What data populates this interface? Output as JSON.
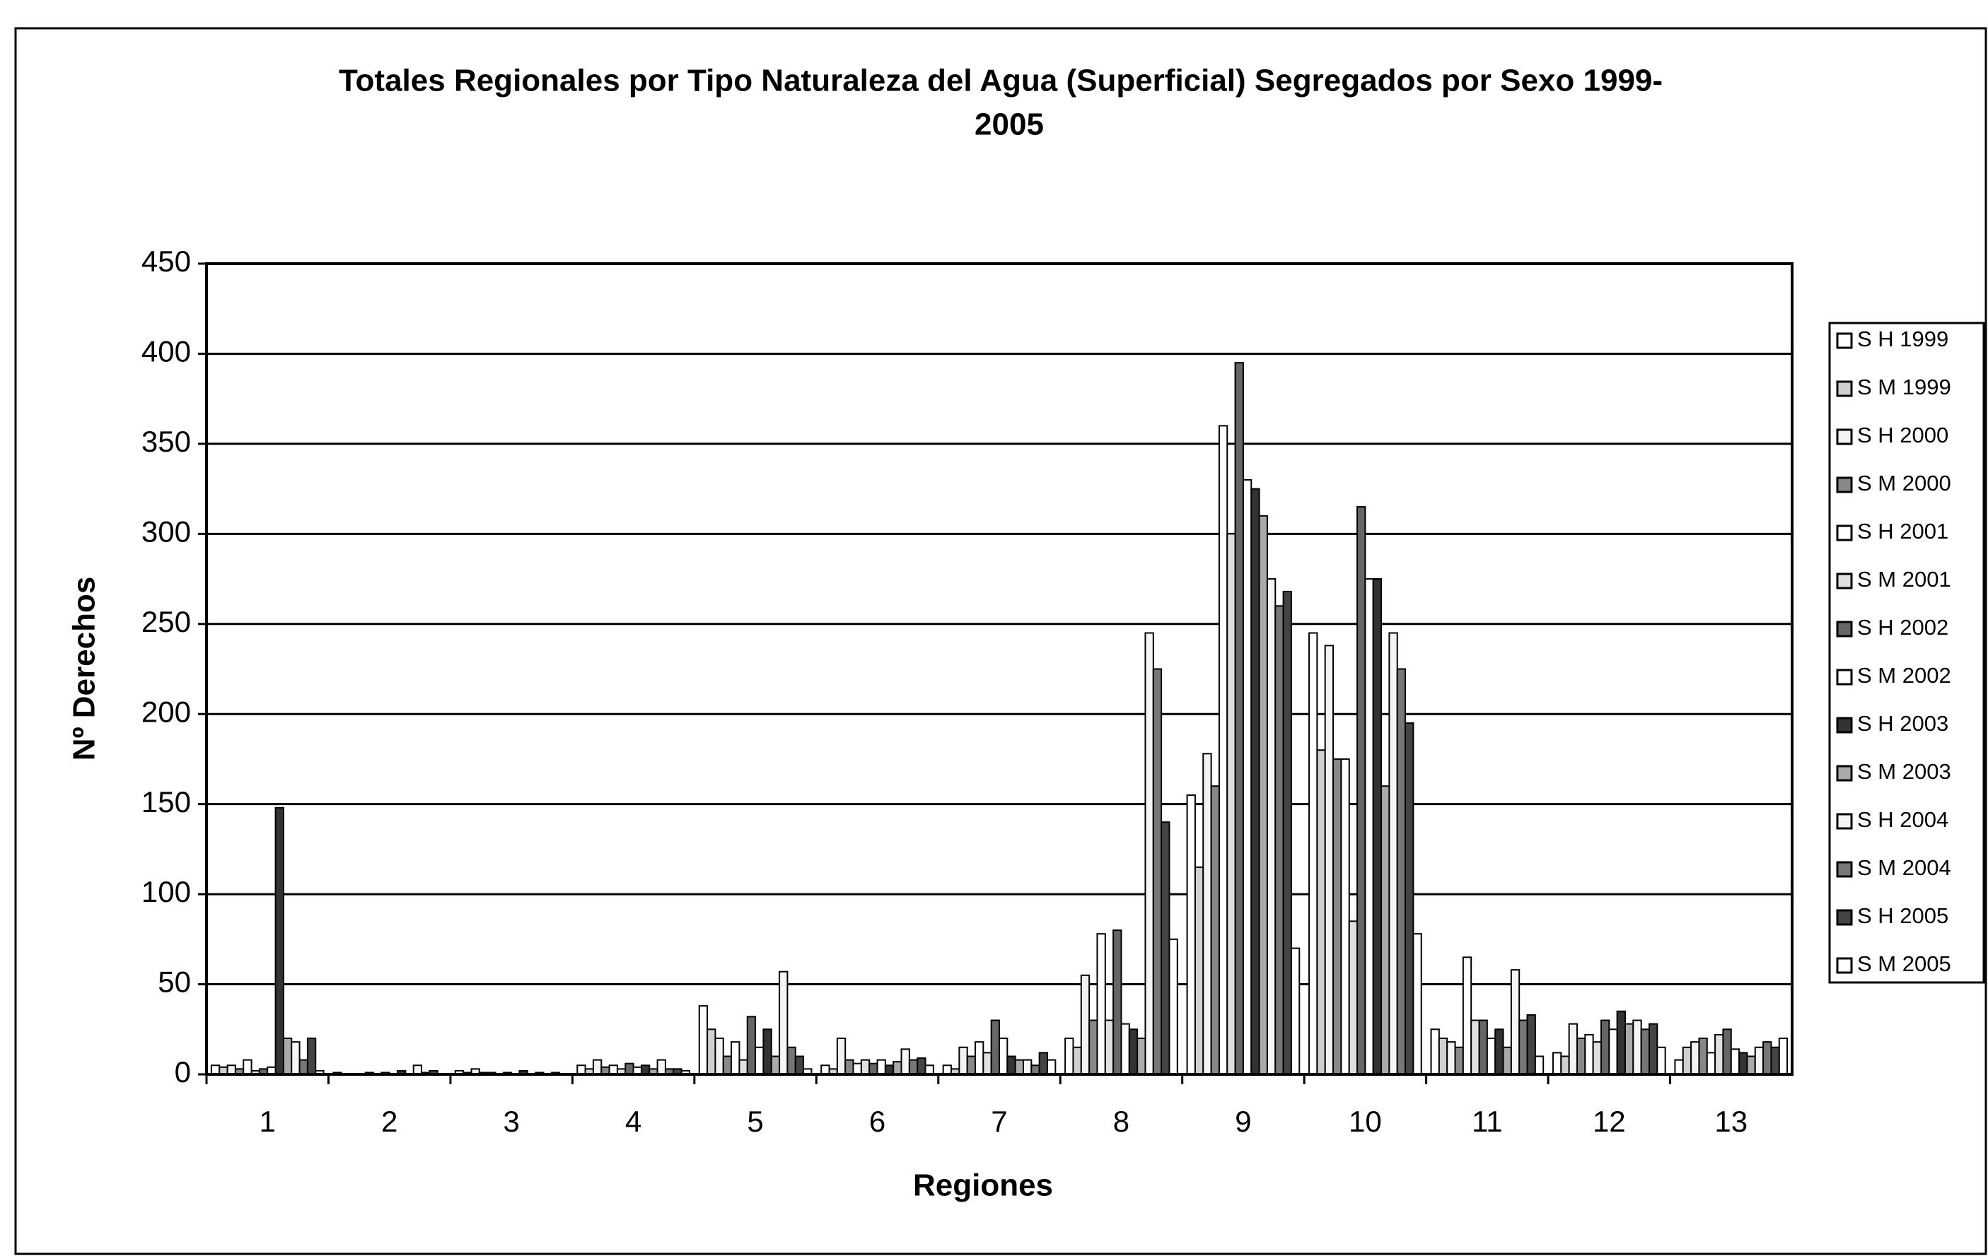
{
  "chart_data": {
    "type": "bar",
    "title": [
      "Totales Regionales por Tipo Naturaleza del Agua (Superficial) Segregados por Sexo 1999-",
      "2005"
    ],
    "x_label": "Regiones",
    "y_label": "Nº Derechos",
    "categories": [
      "1",
      "2",
      "3",
      "4",
      "5",
      "6",
      "7",
      "8",
      "9",
      "10",
      "11",
      "12",
      "13"
    ],
    "ylim": [
      0,
      450
    ],
    "yticks": [
      0,
      50,
      100,
      150,
      200,
      250,
      300,
      350,
      400,
      450
    ],
    "grid": true,
    "legend": "right",
    "series": [
      {
        "name": "S H 1999",
        "color": "#ffffff",
        "values": [
          5,
          1,
          2,
          5,
          38,
          5,
          5,
          20,
          155,
          245,
          25,
          12,
          8
        ]
      },
      {
        "name": "S M 1999",
        "color": "#d0d0d0",
        "values": [
          4,
          0,
          1,
          3,
          25,
          3,
          3,
          15,
          115,
          180,
          20,
          10,
          15
        ]
      },
      {
        "name": "S H 2000",
        "color": "#f2f2f2",
        "values": [
          5,
          0,
          3,
          8,
          20,
          20,
          15,
          55,
          178,
          238,
          18,
          28,
          18
        ]
      },
      {
        "name": "S M 2000",
        "color": "#888888",
        "values": [
          3,
          0,
          1,
          4,
          10,
          8,
          10,
          30,
          160,
          175,
          15,
          20,
          20
        ]
      },
      {
        "name": "S H 2001",
        "color": "#ffffff",
        "values": [
          8,
          1,
          1,
          5,
          18,
          6,
          18,
          78,
          360,
          175,
          65,
          22,
          12
        ]
      },
      {
        "name": "S M 2001",
        "color": "#e0e0e0",
        "values": [
          2,
          0,
          0,
          3,
          8,
          8,
          12,
          30,
          300,
          85,
          30,
          18,
          22
        ]
      },
      {
        "name": "S H 2002",
        "color": "#666666",
        "values": [
          3,
          1,
          1,
          6,
          32,
          6,
          30,
          80,
          395,
          315,
          30,
          30,
          25
        ]
      },
      {
        "name": "S M 2002",
        "color": "#ffffff",
        "values": [
          4,
          0,
          0,
          4,
          15,
          8,
          20,
          28,
          330,
          275,
          20,
          25,
          14
        ]
      },
      {
        "name": "S H 2003",
        "color": "#333333",
        "values": [
          148,
          2,
          2,
          5,
          25,
          5,
          10,
          25,
          325,
          275,
          25,
          35,
          12
        ]
      },
      {
        "name": "S M 2003",
        "color": "#aaaaaa",
        "values": [
          20,
          0,
          0,
          3,
          10,
          7,
          8,
          20,
          310,
          160,
          15,
          28,
          10
        ]
      },
      {
        "name": "S H 2004",
        "color": "#f5f5f5",
        "values": [
          18,
          5,
          1,
          8,
          57,
          14,
          8,
          245,
          275,
          245,
          58,
          30,
          15
        ]
      },
      {
        "name": "S M 2004",
        "color": "#777777",
        "values": [
          8,
          1,
          0,
          3,
          15,
          8,
          5,
          225,
          260,
          225,
          30,
          25,
          18
        ]
      },
      {
        "name": "S H 2005",
        "color": "#444444",
        "values": [
          20,
          2,
          1,
          3,
          10,
          9,
          12,
          140,
          268,
          195,
          33,
          28,
          15
        ]
      },
      {
        "name": "S M 2005",
        "color": "#ffffff",
        "values": [
          2,
          0,
          0,
          2,
          3,
          5,
          8,
          75,
          70,
          78,
          10,
          15,
          20
        ]
      }
    ]
  }
}
